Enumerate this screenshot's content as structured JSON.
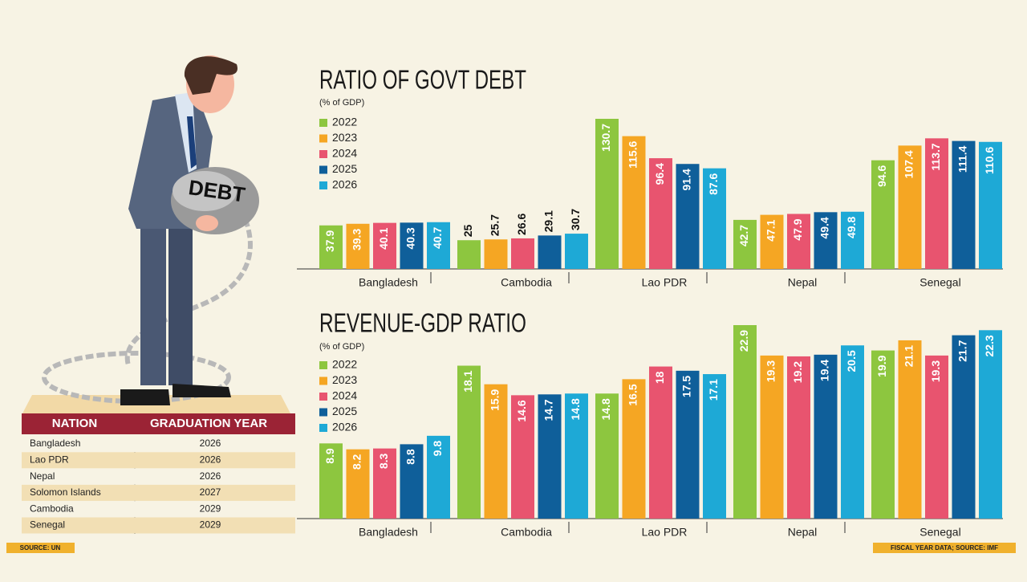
{
  "chart_data": [
    {
      "type": "bar",
      "title": "RATIO OF GOVT DEBT",
      "subtitle": "(% of GDP)",
      "categories": [
        "Bangladesh",
        "Cambodia",
        "Lao PDR",
        "Nepal",
        "Senegal"
      ],
      "series": [
        {
          "name": "2022",
          "color": "#8dc63f",
          "values": [
            37.9,
            25,
            130.7,
            42.7,
            94.6
          ]
        },
        {
          "name": "2023",
          "color": "#f5a623",
          "values": [
            39.3,
            25.7,
            115.6,
            47.1,
            107.4
          ]
        },
        {
          "name": "2024",
          "color": "#e8546f",
          "values": [
            40.1,
            26.6,
            96.4,
            47.9,
            113.7
          ]
        },
        {
          "name": "2025",
          "color": "#0f5f9a",
          "values": [
            40.3,
            29.1,
            91.4,
            49.4,
            111.4
          ]
        },
        {
          "name": "2026",
          "color": "#1ea9d6",
          "values": [
            40.7,
            30.7,
            87.6,
            49.8,
            110.6
          ]
        }
      ]
    },
    {
      "type": "bar",
      "title": "REVENUE-GDP RATIO",
      "subtitle": "(% of GDP)",
      "categories": [
        "Bangladesh",
        "Cambodia",
        "Lao PDR",
        "Nepal",
        "Senegal"
      ],
      "series": [
        {
          "name": "2022",
          "color": "#8dc63f",
          "values": [
            8.9,
            18.1,
            14.8,
            22.9,
            19.9
          ]
        },
        {
          "name": "2023",
          "color": "#f5a623",
          "values": [
            8.2,
            15.9,
            16.5,
            19.3,
            21.1
          ]
        },
        {
          "name": "2024",
          "color": "#e8546f",
          "values": [
            8.3,
            14.6,
            18,
            19.2,
            19.3
          ]
        },
        {
          "name": "2025",
          "color": "#0f5f9a",
          "values": [
            8.8,
            14.7,
            17.5,
            19.4,
            21.7
          ]
        },
        {
          "name": "2026",
          "color": "#1ea9d6",
          "values": [
            9.8,
            14.8,
            17.1,
            20.5,
            22.3
          ]
        }
      ]
    }
  ],
  "illustration": {
    "label": "DEBT"
  },
  "table": {
    "columns": [
      "NATION",
      "GRADUATION YEAR"
    ],
    "rows": [
      [
        "Bangladesh",
        "2026"
      ],
      [
        "Lao PDR",
        "2026"
      ],
      [
        "Nepal",
        "2026"
      ],
      [
        "Solomon Islands",
        "2027"
      ],
      [
        "Cambodia",
        "2029"
      ],
      [
        "Senegal",
        "2029"
      ]
    ]
  },
  "sources": {
    "left": "SOURCE: UN",
    "right": "FISCAL YEAR DATA; SOURCE: IMF"
  }
}
